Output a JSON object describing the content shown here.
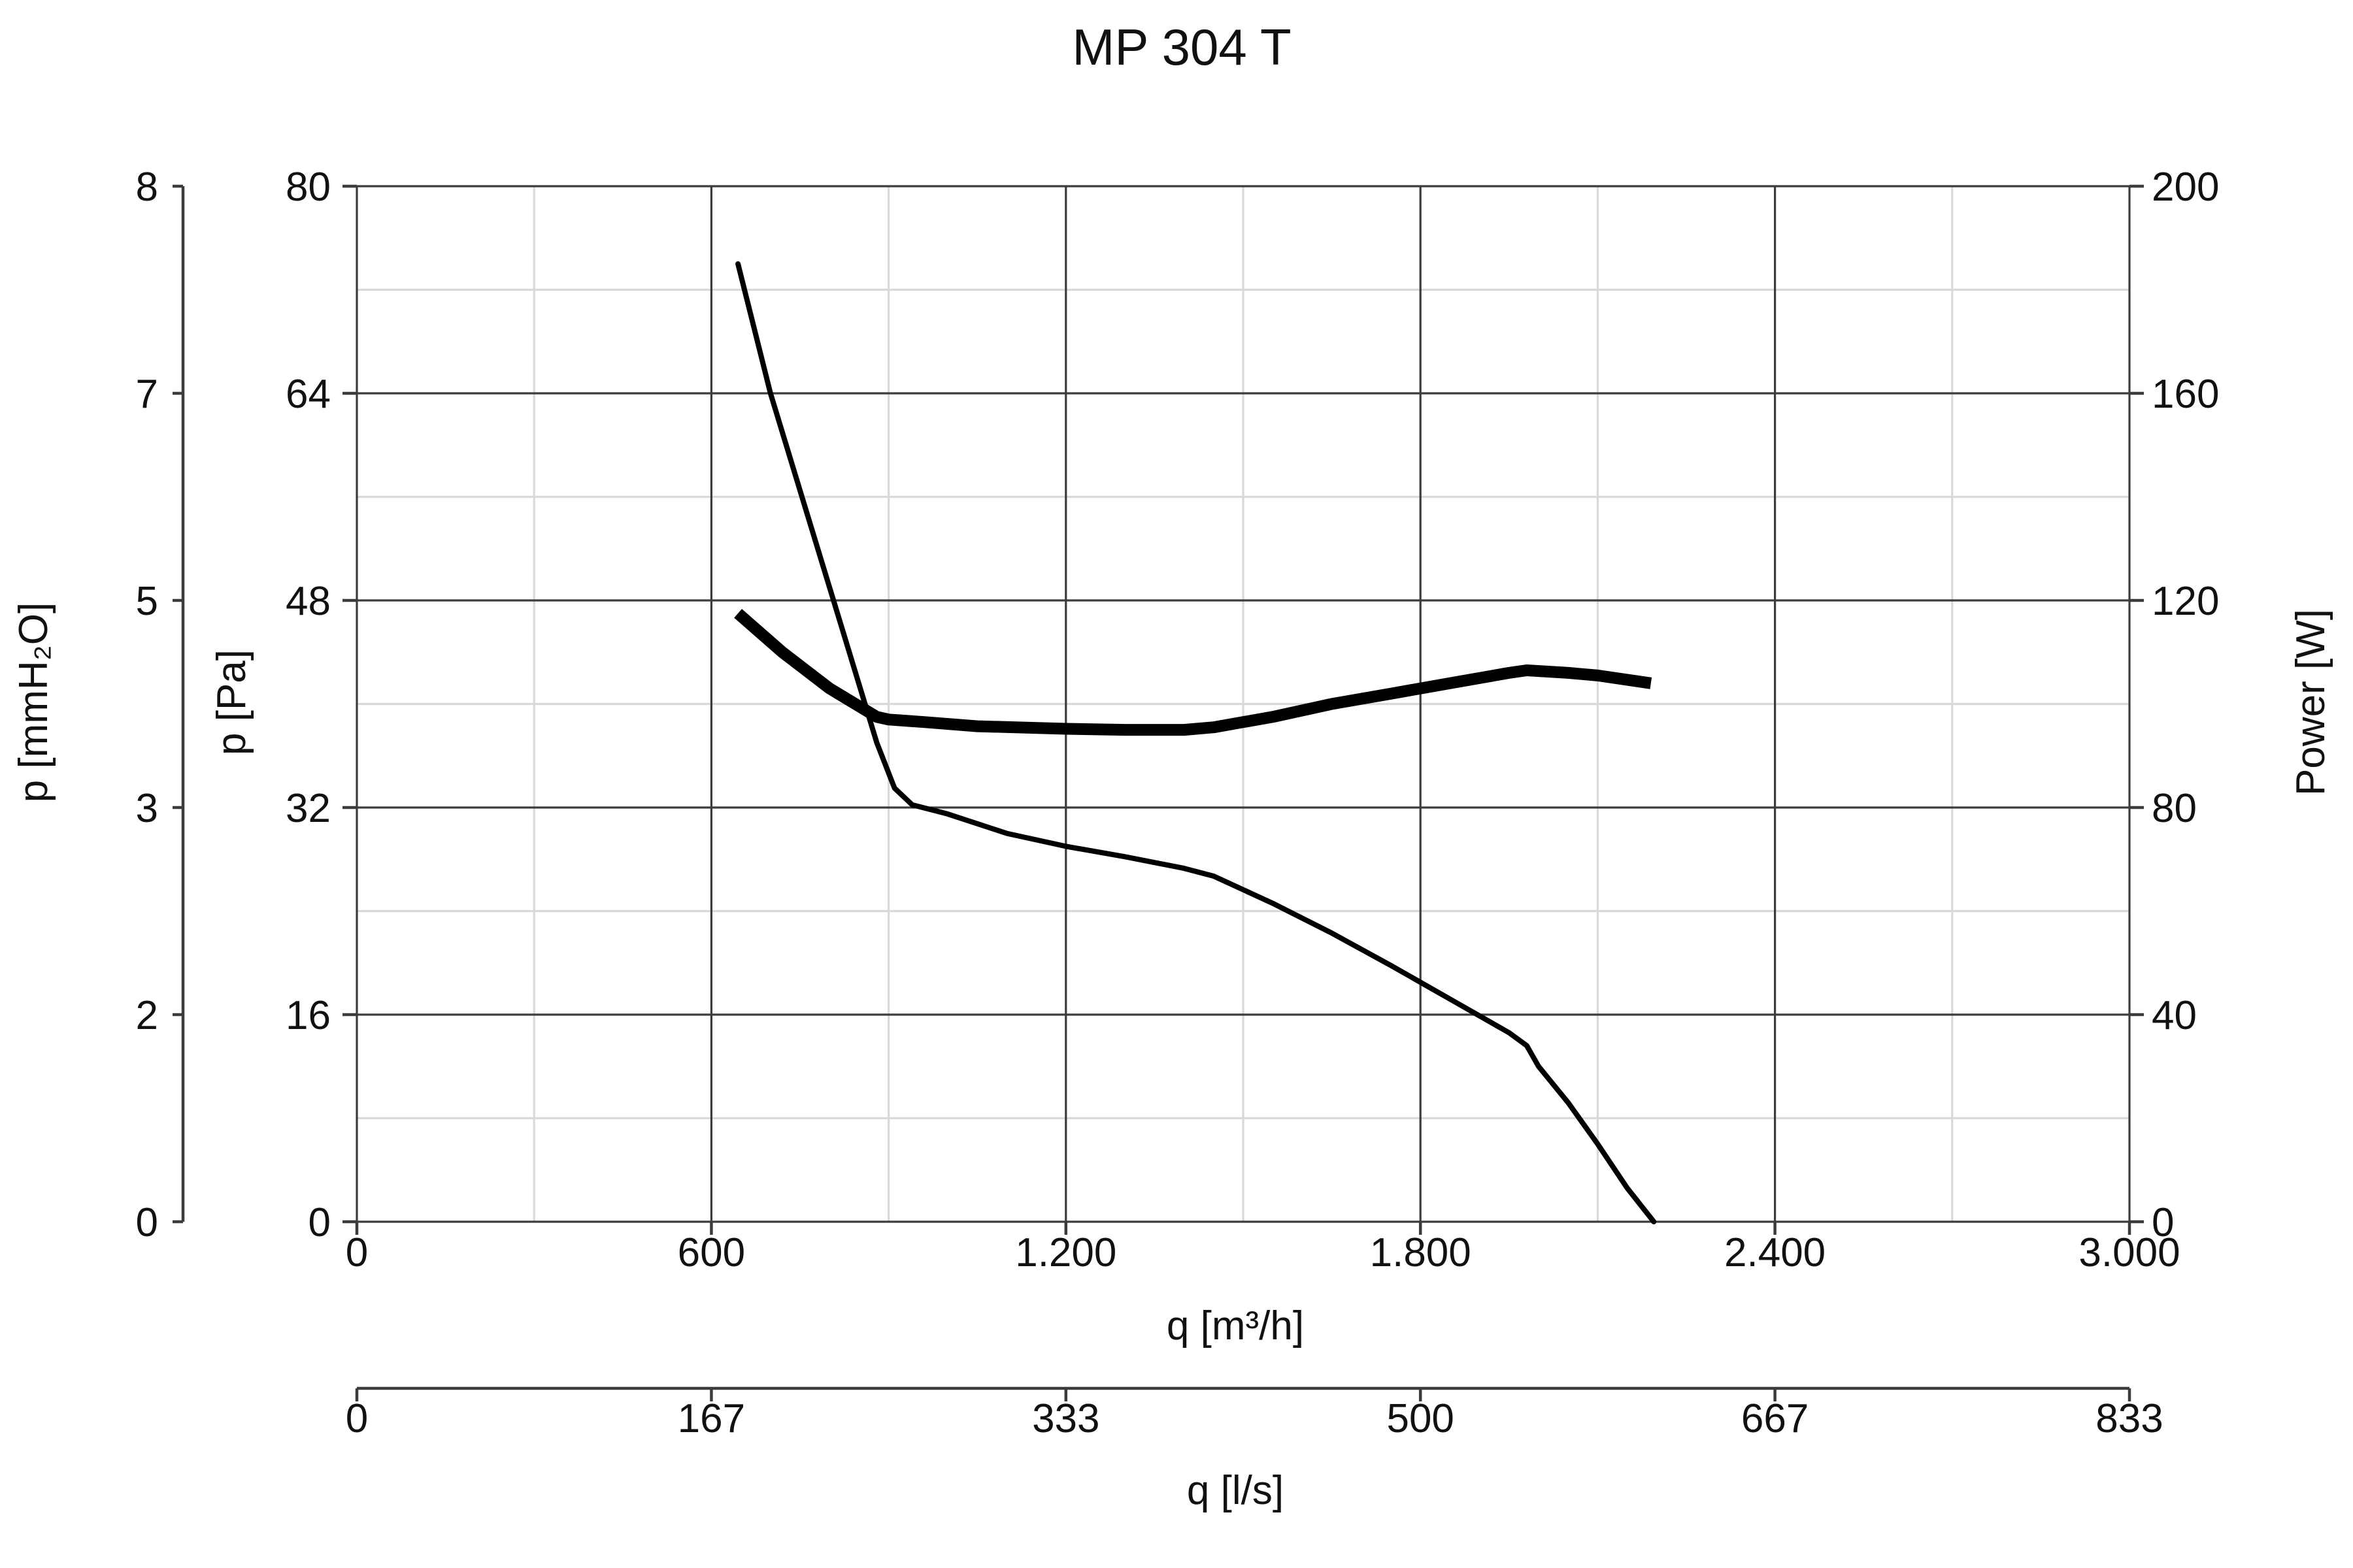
{
  "chart_data": {
    "type": "line",
    "title": "MP 304 T",
    "grid": true,
    "x_axes": {
      "primary": {
        "label": "q [m³/h]",
        "range": [
          0,
          3000
        ],
        "major_ticks": [
          0,
          600,
          1200,
          1800,
          2400,
          3000
        ],
        "major_tick_labels": [
          "0",
          "600",
          "1.200",
          "1.800",
          "2.400",
          "3.000"
        ],
        "minor_ticks": [
          300,
          900,
          1500,
          2100,
          2700
        ]
      },
      "secondary": {
        "label": "q [l/s]",
        "tick_labels": [
          "0",
          "167",
          "333",
          "500",
          "667",
          "833"
        ]
      }
    },
    "y_axes": {
      "pressure_pa": {
        "label": "p [Pa]",
        "range": [
          0,
          80
        ],
        "major_ticks": [
          0,
          16,
          32,
          48,
          64,
          80
        ],
        "major_tick_labels": [
          "0",
          "16",
          "32",
          "48",
          "64",
          "80"
        ],
        "minor_ticks": [
          8,
          24,
          40,
          56,
          72
        ]
      },
      "pressure_mmh2o": {
        "label": "p [mmH₂O]",
        "tick_labels": [
          "0",
          "2",
          "3",
          "5",
          "7",
          "8"
        ]
      },
      "power_w": {
        "label": "Power [W]",
        "range": [
          0,
          200
        ],
        "tick_labels": [
          "0",
          "40",
          "80",
          "120",
          "160",
          "200"
        ]
      }
    },
    "series": [
      {
        "axis": "pressure_pa",
        "style": "thin",
        "x": [
          645,
          700,
          760,
          820,
          880,
          910,
          940,
          1000,
          1100,
          1200,
          1300,
          1400,
          1450,
          1550,
          1650,
          1750,
          1850,
          1950,
          1980,
          2000,
          2050,
          2100,
          2150,
          2195
        ],
        "y": [
          74,
          64,
          55,
          46,
          37,
          33.5,
          32.2,
          31.5,
          30.0,
          29.0,
          28.2,
          27.3,
          26.7,
          24.6,
          22.3,
          19.8,
          17.2,
          14.6,
          13.6,
          12.0,
          9.2,
          6.0,
          2.6,
          0
        ]
      },
      {
        "axis": "power_w",
        "style": "thick",
        "x": [
          645,
          720,
          800,
          880,
          900,
          960,
          1050,
          1200,
          1300,
          1400,
          1450,
          1550,
          1650,
          1750,
          1850,
          1950,
          1980,
          2050,
          2100,
          2190
        ],
        "y": [
          117.5,
          110,
          103,
          97.5,
          97,
          96.5,
          95.7,
          95.2,
          95,
          95,
          95.5,
          97.5,
          100,
          102,
          104,
          106,
          106.5,
          106,
          105.5,
          104
        ]
      }
    ]
  }
}
